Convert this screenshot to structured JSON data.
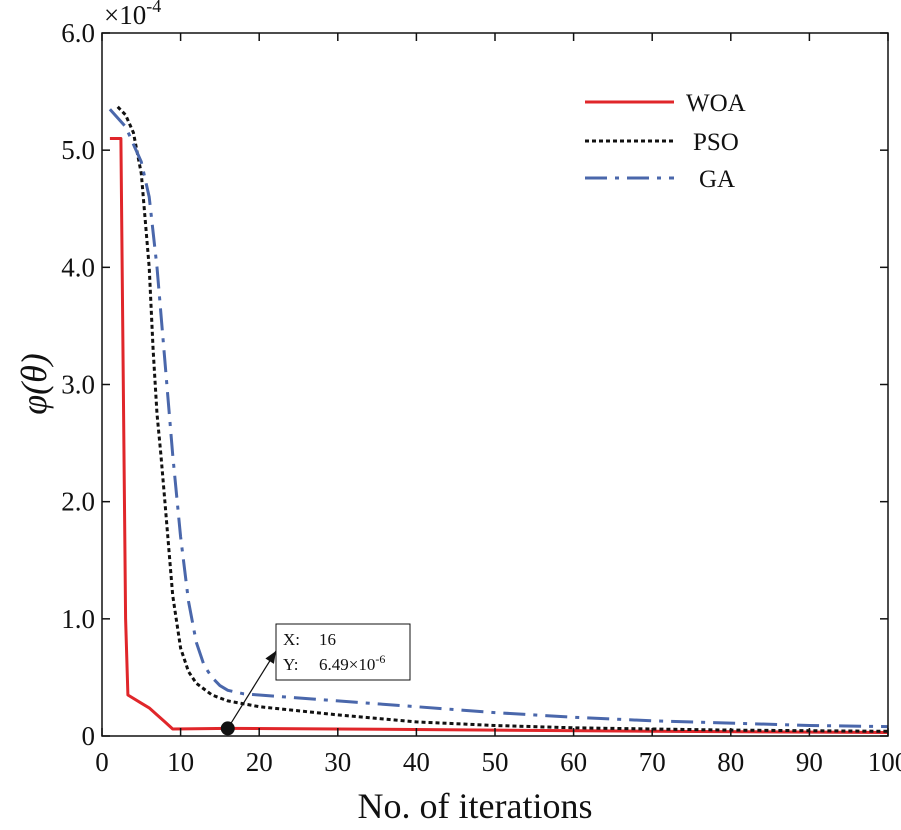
{
  "chart_data": {
    "type": "line",
    "xlabel": "No. of iterations",
    "ylabel": "φ(θ)",
    "y_multiplier": "×10",
    "y_multiplier_exp": "-4",
    "xlim": [
      0,
      100
    ],
    "ylim": [
      0,
      6.0
    ],
    "grid": false,
    "legend_position": "top-right",
    "x_ticks": [
      0,
      10,
      20,
      30,
      40,
      50,
      60,
      70,
      80,
      90,
      100
    ],
    "x_tick_labels": [
      "0",
      "10",
      "20",
      "30",
      "40",
      "50",
      "60",
      "70",
      "80",
      "90",
      "100"
    ],
    "y_ticks": [
      0,
      1,
      2,
      3,
      4,
      5,
      6
    ],
    "y_tick_labels": [
      "0",
      "1.0",
      "2.0",
      "3.0",
      "4.0",
      "5.0",
      "6.0"
    ],
    "series": [
      {
        "name": "WOA",
        "color": "#e0262a",
        "style": "solid",
        "x": [
          1,
          2,
          2.4,
          3,
          3.3,
          5,
          6,
          7,
          8,
          9,
          16,
          30,
          50,
          70,
          100
        ],
        "y": [
          5.1,
          5.1,
          5.1,
          1.0,
          0.35,
          0.28,
          0.24,
          0.18,
          0.12,
          0.06,
          0.0649,
          0.06,
          0.05,
          0.04,
          0.03
        ]
      },
      {
        "name": "PSO",
        "color": "#111111",
        "style": "dotted",
        "x": [
          2,
          3,
          4,
          5,
          6,
          6.5,
          7,
          7.5,
          8,
          8.5,
          9,
          10,
          11,
          12,
          14,
          16,
          20,
          30,
          40,
          50,
          60,
          70,
          80,
          90,
          100
        ],
        "y": [
          5.37,
          5.3,
          5.15,
          4.8,
          4.0,
          3.3,
          2.75,
          2.4,
          2.0,
          1.6,
          1.2,
          0.75,
          0.55,
          0.45,
          0.35,
          0.3,
          0.25,
          0.18,
          0.12,
          0.09,
          0.07,
          0.06,
          0.05,
          0.045,
          0.04
        ]
      },
      {
        "name": "GA",
        "color": "#4a67ab",
        "style": "dashdot",
        "x": [
          1,
          3,
          5,
          6,
          7,
          8,
          9,
          10,
          11,
          12,
          13,
          14,
          15,
          16,
          18,
          20,
          30,
          40,
          50,
          60,
          70,
          80,
          90,
          100
        ],
        "y": [
          5.35,
          5.2,
          4.9,
          4.6,
          4.0,
          3.2,
          2.4,
          1.7,
          1.15,
          0.8,
          0.6,
          0.5,
          0.43,
          0.39,
          0.36,
          0.35,
          0.3,
          0.25,
          0.2,
          0.16,
          0.13,
          0.11,
          0.09,
          0.08
        ]
      }
    ],
    "annotation": {
      "point": {
        "x": 16,
        "y": 0.0649
      },
      "x_label": "X:",
      "x_value": "16",
      "y_label": "Y:",
      "y_value": "6.49×10",
      "y_value_exp": "-6"
    }
  }
}
